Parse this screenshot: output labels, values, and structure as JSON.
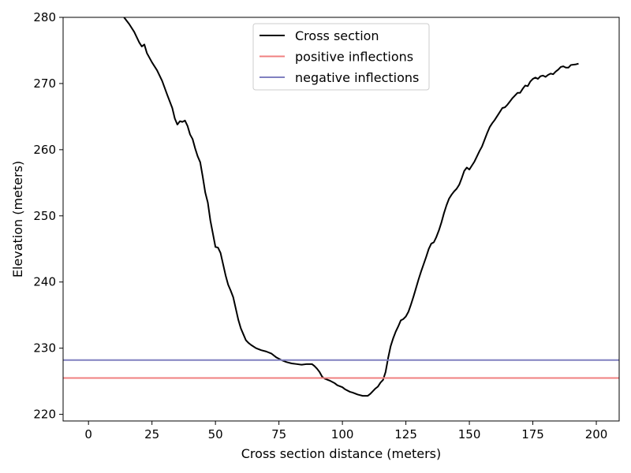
{
  "chart_data": {
    "type": "line",
    "title": "",
    "xlabel": "Cross section distance (meters)",
    "ylabel": "Elevation (meters)",
    "xlim": [
      -10,
      209
    ],
    "ylim": [
      219,
      280
    ],
    "xticks": [
      0,
      25,
      50,
      75,
      100,
      125,
      150,
      175,
      200
    ],
    "yticks": [
      220,
      230,
      240,
      250,
      260,
      270,
      280
    ],
    "grid": false,
    "legend_position": "top-center",
    "series": [
      {
        "name": "Cross section",
        "color": "#000000",
        "points": [
          [
            14,
            280.0
          ],
          [
            16,
            279.0
          ],
          [
            18,
            277.8
          ],
          [
            20,
            276.2
          ],
          [
            21,
            275.6
          ],
          [
            22,
            275.9
          ],
          [
            23,
            274.6
          ],
          [
            25,
            273.2
          ],
          [
            27,
            272.0
          ],
          [
            29,
            270.4
          ],
          [
            31,
            268.3
          ],
          [
            33,
            266.3
          ],
          [
            34,
            264.7
          ],
          [
            35,
            263.8
          ],
          [
            36,
            264.3
          ],
          [
            37,
            264.2
          ],
          [
            38,
            264.4
          ],
          [
            39,
            263.6
          ],
          [
            40,
            262.3
          ],
          [
            41,
            261.6
          ],
          [
            42,
            260.2
          ],
          [
            43,
            259.0
          ],
          [
            44,
            258.1
          ],
          [
            45,
            255.9
          ],
          [
            46,
            253.5
          ],
          [
            47,
            252.0
          ],
          [
            48,
            249.3
          ],
          [
            49,
            247.3
          ],
          [
            50,
            245.3
          ],
          [
            51,
            245.2
          ],
          [
            52,
            244.4
          ],
          [
            53,
            242.7
          ],
          [
            54,
            241.0
          ],
          [
            55,
            239.6
          ],
          [
            56,
            238.7
          ],
          [
            57,
            237.7
          ],
          [
            58,
            236.0
          ],
          [
            59,
            234.3
          ],
          [
            60,
            233.0
          ],
          [
            61,
            232.1
          ],
          [
            62,
            231.2
          ],
          [
            63,
            230.8
          ],
          [
            64,
            230.5
          ],
          [
            66,
            230.0
          ],
          [
            68,
            229.7
          ],
          [
            70,
            229.5
          ],
          [
            72,
            229.2
          ],
          [
            74,
            228.6
          ],
          [
            76,
            228.2
          ],
          [
            78,
            227.9
          ],
          [
            80,
            227.7
          ],
          [
            82,
            227.6
          ],
          [
            84,
            227.5
          ],
          [
            86,
            227.6
          ],
          [
            88,
            227.6
          ],
          [
            89,
            227.3
          ],
          [
            90,
            226.9
          ],
          [
            91,
            226.4
          ],
          [
            92,
            225.7
          ],
          [
            93,
            225.4
          ],
          [
            95,
            225.1
          ],
          [
            97,
            224.7
          ],
          [
            98,
            224.4
          ],
          [
            100,
            224.1
          ],
          [
            101,
            223.8
          ],
          [
            103,
            223.4
          ],
          [
            104,
            223.3
          ],
          [
            106,
            223.0
          ],
          [
            108,
            222.8
          ],
          [
            110,
            222.8
          ],
          [
            111,
            223.1
          ],
          [
            112,
            223.5
          ],
          [
            113,
            223.9
          ],
          [
            114,
            224.2
          ],
          [
            115,
            224.8
          ],
          [
            116,
            225.2
          ],
          [
            117,
            226.4
          ],
          [
            118,
            228.5
          ],
          [
            119,
            230.3
          ],
          [
            120,
            231.5
          ],
          [
            121,
            232.5
          ],
          [
            122,
            233.3
          ],
          [
            123,
            234.2
          ],
          [
            124,
            234.4
          ],
          [
            125,
            234.8
          ],
          [
            126,
            235.5
          ],
          [
            127,
            236.6
          ],
          [
            128,
            237.8
          ],
          [
            129,
            239.1
          ],
          [
            130,
            240.4
          ],
          [
            131,
            241.6
          ],
          [
            132,
            242.7
          ],
          [
            133,
            243.8
          ],
          [
            134,
            245.0
          ],
          [
            135,
            245.8
          ],
          [
            136,
            246.0
          ],
          [
            137,
            246.8
          ],
          [
            138,
            247.8
          ],
          [
            139,
            249.0
          ],
          [
            140,
            250.4
          ],
          [
            141,
            251.6
          ],
          [
            142,
            252.6
          ],
          [
            143,
            253.2
          ],
          [
            144,
            253.7
          ],
          [
            145,
            254.1
          ],
          [
            146,
            254.7
          ],
          [
            147,
            255.7
          ],
          [
            148,
            256.8
          ],
          [
            149,
            257.3
          ],
          [
            150,
            257.0
          ],
          [
            151,
            257.6
          ],
          [
            152,
            258.2
          ],
          [
            153,
            259.0
          ],
          [
            154,
            259.8
          ],
          [
            155,
            260.5
          ],
          [
            156,
            261.5
          ],
          [
            157,
            262.5
          ],
          [
            158,
            263.4
          ],
          [
            159,
            264.0
          ],
          [
            160,
            264.5
          ],
          [
            161,
            265.1
          ],
          [
            162,
            265.7
          ],
          [
            163,
            266.3
          ],
          [
            164,
            266.4
          ],
          [
            165,
            266.8
          ],
          [
            166,
            267.3
          ],
          [
            167,
            267.8
          ],
          [
            168,
            268.2
          ],
          [
            169,
            268.6
          ],
          [
            170,
            268.6
          ],
          [
            171,
            269.2
          ],
          [
            172,
            269.7
          ],
          [
            173,
            269.6
          ],
          [
            174,
            270.3
          ],
          [
            175,
            270.7
          ],
          [
            176,
            270.9
          ],
          [
            177,
            270.7
          ],
          [
            178,
            271.1
          ],
          [
            179,
            271.2
          ],
          [
            180,
            271.0
          ],
          [
            181,
            271.3
          ],
          [
            182,
            271.5
          ],
          [
            183,
            271.4
          ],
          [
            184,
            271.8
          ],
          [
            185,
            272.1
          ],
          [
            186,
            272.5
          ],
          [
            187,
            272.6
          ],
          [
            188,
            272.4
          ],
          [
            189,
            272.4
          ],
          [
            190,
            272.8
          ],
          [
            192,
            272.9
          ],
          [
            193,
            273.0
          ]
        ]
      },
      {
        "name": "positive inflections",
        "color": "#f08080",
        "hline": 225.5
      },
      {
        "name": "negative inflections",
        "color": "#8080c0",
        "hline": 228.2
      }
    ]
  }
}
